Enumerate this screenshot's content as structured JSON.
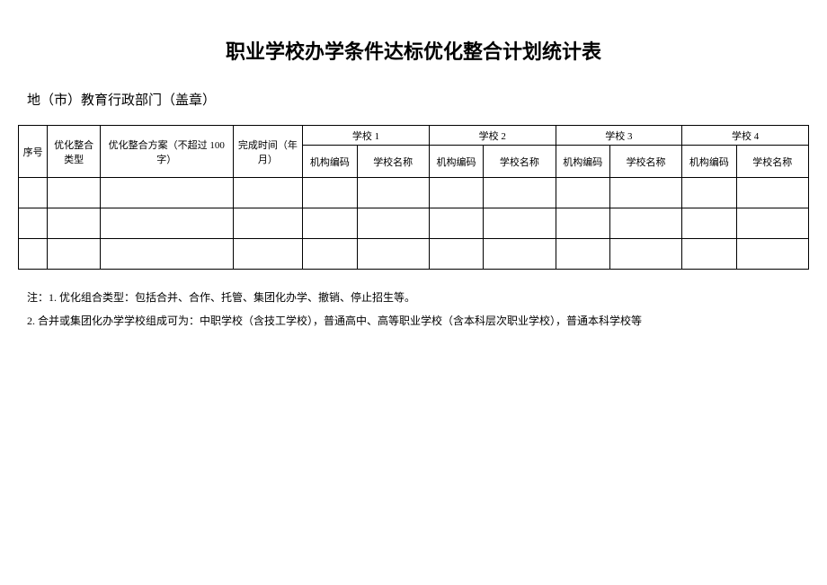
{
  "title": "职业学校办学条件达标优化整合计划统计表",
  "subtitle": "地（市）教育行政部门（盖章）",
  "table": {
    "type": "table",
    "headers": {
      "seq": "序号",
      "type": "优化整合类型",
      "plan": "优化整合方案（不超过 100 字）",
      "time": "完成时间（年月）",
      "school_group_prefix": "学校",
      "org_code": "机构编码",
      "school_name": "学校名称"
    },
    "school_groups": [
      "学校 1",
      "学校 2",
      "学校 3",
      "学校 4"
    ],
    "data_row_count": 3,
    "border_color": "#000000",
    "background_color": "#ffffff",
    "header_fontsize": 11,
    "cell_fontsize": 11
  },
  "notes": {
    "note1": "注：1. 优化组合类型：包括合并、合作、托管、集团化办学、撤销、停止招生等。",
    "note2": "2. 合并或集团化办学学校组成可为：中职学校（含技工学校），普通高中、高等职业学校（含本科层次职业学校），普通本科学校等"
  },
  "title_fontsize": 22,
  "subtitle_fontsize": 15,
  "notes_fontsize": 12,
  "text_color": "#000000"
}
